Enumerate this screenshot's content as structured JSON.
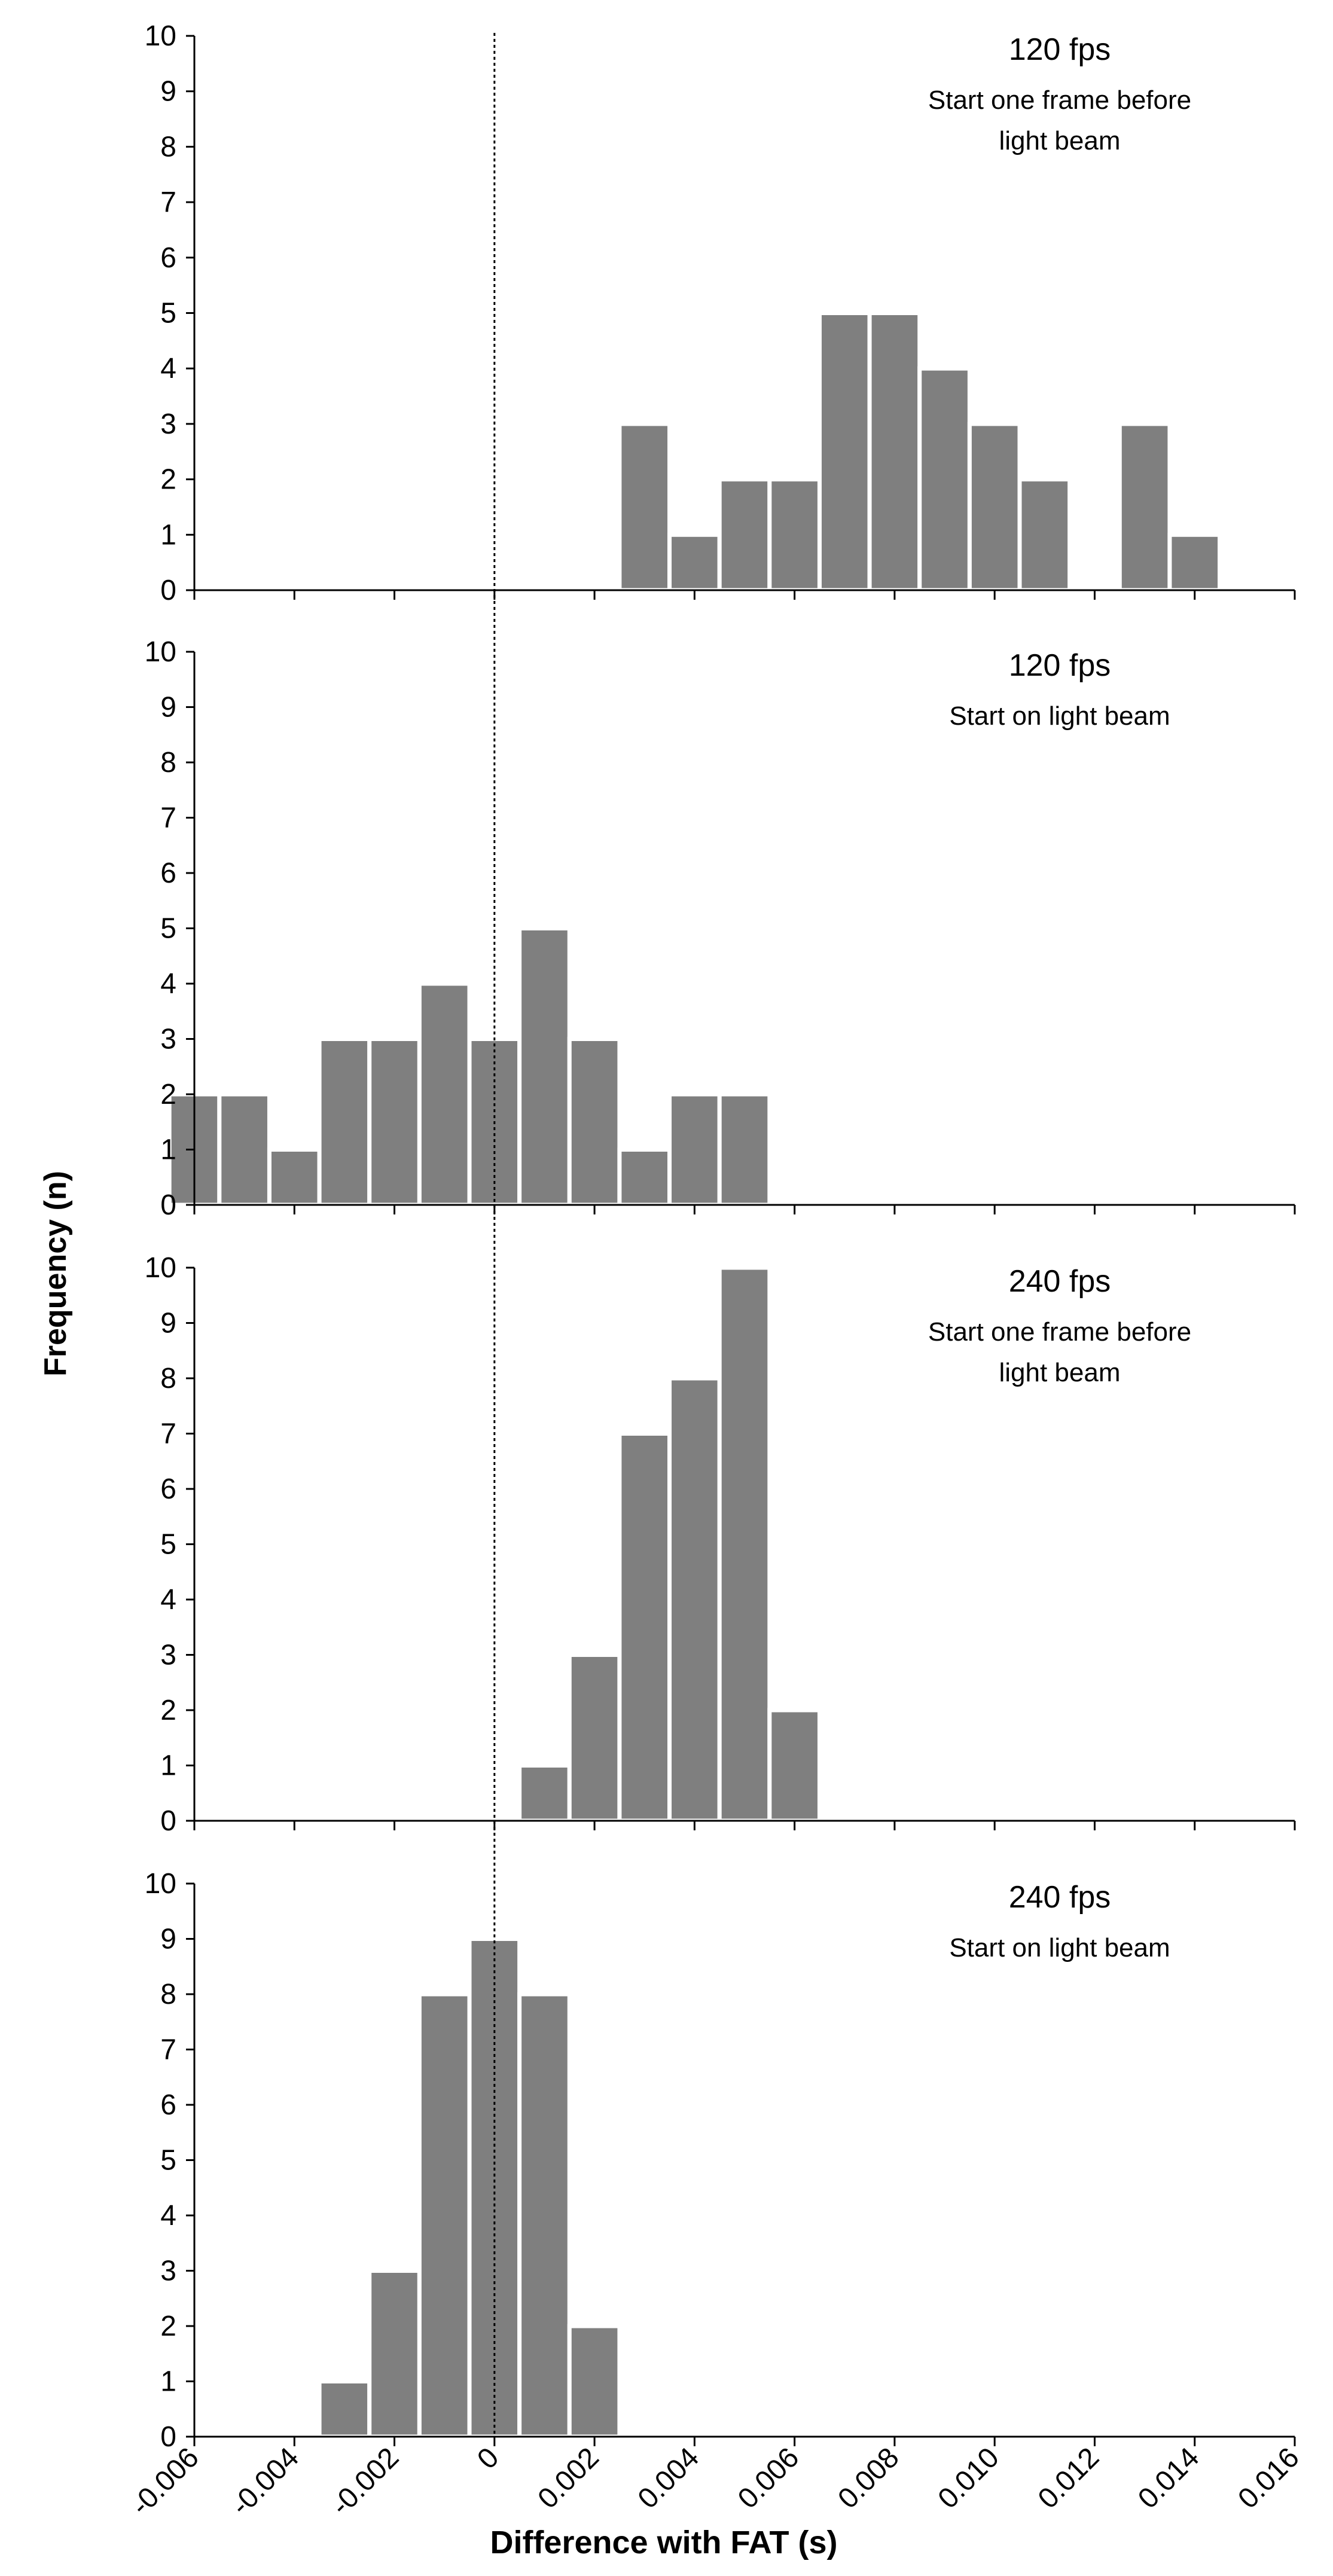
{
  "figure": {
    "ylabel": "Frequency (n)",
    "xlabel": "Difference with FAT (s)",
    "reference_line_x": 0,
    "colors": {
      "bar_fill": "#7f7f7f",
      "bar_stroke": "#ffffff",
      "axis": "#000000",
      "reference_line": "#000000",
      "background": "#ffffff"
    }
  },
  "chart_data": [
    {
      "type": "bar",
      "title": "120 fps",
      "subtitle": [
        "Start one frame before",
        "light beam"
      ],
      "bin_width": 0.001,
      "xlim": [
        -0.006,
        0.016
      ],
      "ylim": [
        0,
        10
      ],
      "yticks": [
        "0",
        "1",
        "2",
        "3",
        "4",
        "5",
        "6",
        "7",
        "8",
        "9",
        "10"
      ],
      "bins": [
        {
          "x": 0.003,
          "value": 3
        },
        {
          "x": 0.004,
          "value": 1
        },
        {
          "x": 0.005,
          "value": 2
        },
        {
          "x": 0.006,
          "value": 2
        },
        {
          "x": 0.007,
          "value": 5
        },
        {
          "x": 0.008,
          "value": 5
        },
        {
          "x": 0.009,
          "value": 4
        },
        {
          "x": 0.01,
          "value": 3
        },
        {
          "x": 0.011,
          "value": 2
        },
        {
          "x": 0.013,
          "value": 3
        },
        {
          "x": 0.014,
          "value": 1
        }
      ]
    },
    {
      "type": "bar",
      "title": "120 fps",
      "subtitle": [
        "Start on light beam"
      ],
      "bin_width": 0.001,
      "xlim": [
        -0.006,
        0.016
      ],
      "ylim": [
        0,
        10
      ],
      "yticks": [
        "0",
        "1",
        "2",
        "3",
        "4",
        "5",
        "6",
        "7",
        "8",
        "9",
        "10"
      ],
      "bins": [
        {
          "x": -0.006,
          "value": 2
        },
        {
          "x": -0.005,
          "value": 2
        },
        {
          "x": -0.004,
          "value": 1
        },
        {
          "x": -0.003,
          "value": 3
        },
        {
          "x": -0.002,
          "value": 3
        },
        {
          "x": -0.001,
          "value": 4
        },
        {
          "x": 0.0,
          "value": 3
        },
        {
          "x": 0.001,
          "value": 5
        },
        {
          "x": 0.002,
          "value": 3
        },
        {
          "x": 0.003,
          "value": 1
        },
        {
          "x": 0.004,
          "value": 2
        },
        {
          "x": 0.005,
          "value": 2
        }
      ]
    },
    {
      "type": "bar",
      "title": "240 fps",
      "subtitle": [
        "Start one frame before",
        "light beam"
      ],
      "bin_width": 0.001,
      "xlim": [
        -0.006,
        0.016
      ],
      "ylim": [
        0,
        10
      ],
      "yticks": [
        "0",
        "1",
        "2",
        "3",
        "4",
        "5",
        "6",
        "7",
        "8",
        "9",
        "10"
      ],
      "bins": [
        {
          "x": 0.001,
          "value": 1
        },
        {
          "x": 0.002,
          "value": 3
        },
        {
          "x": 0.003,
          "value": 7
        },
        {
          "x": 0.004,
          "value": 8
        },
        {
          "x": 0.005,
          "value": 10
        },
        {
          "x": 0.006,
          "value": 2
        }
      ]
    },
    {
      "type": "bar",
      "title": "240 fps",
      "subtitle": [
        "Start on light beam"
      ],
      "bin_width": 0.001,
      "xlim": [
        -0.006,
        0.016
      ],
      "ylim": [
        0,
        10
      ],
      "yticks": [
        "0",
        "1",
        "2",
        "3",
        "4",
        "5",
        "6",
        "7",
        "8",
        "9",
        "10"
      ],
      "xticks": [
        "-0.006",
        "-0.004",
        "-0.002",
        "0",
        "0.002",
        "0.004",
        "0.006",
        "0.008",
        "0.010",
        "0.012",
        "0.014",
        "0.016"
      ],
      "bins": [
        {
          "x": -0.003,
          "value": 1
        },
        {
          "x": -0.002,
          "value": 3
        },
        {
          "x": -0.001,
          "value": 8
        },
        {
          "x": 0.0,
          "value": 9
        },
        {
          "x": 0.001,
          "value": 8
        },
        {
          "x": 0.002,
          "value": 2
        }
      ]
    }
  ]
}
